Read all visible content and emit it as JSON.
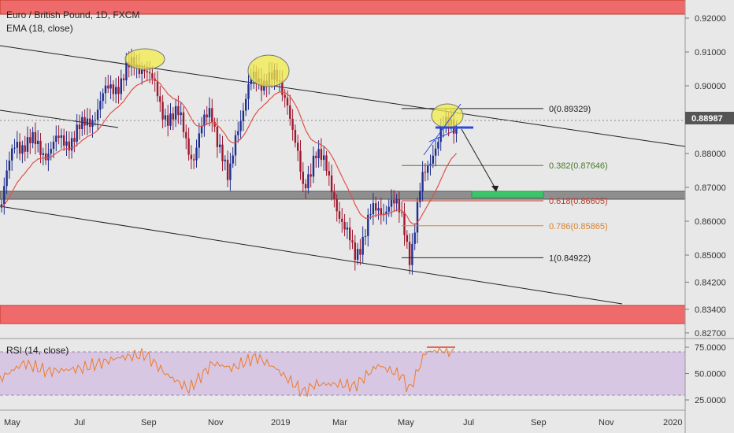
{
  "chart_data": [
    {
      "type": "candlestick",
      "title": "Euro / British Pound, 1D, FXCM",
      "indicator": "EMA (18, close)",
      "y_ticks": [
        "0.92000",
        "0.91000",
        "0.90000",
        "0.89000",
        "0.88000",
        "0.87000",
        "0.86000",
        "0.85000",
        "0.84200",
        "0.83400",
        "0.82700"
      ],
      "x_ticks": [
        "May",
        "Jul",
        "Sep",
        "Nov",
        "2019",
        "Mar",
        "May",
        "Jul",
        "Sep",
        "Nov",
        "2020"
      ],
      "last_price": "0.88987",
      "fib_levels": [
        {
          "label": "0(0.89329)",
          "value": 0.89329,
          "color": "#222222"
        },
        {
          "label": "0.382(0.87646)",
          "value": 0.87646,
          "color": "#4a7a2a"
        },
        {
          "label": "0.618(0.86605)",
          "value": 0.86605,
          "color": "#c0392b"
        },
        {
          "label": "0.786(0.85865)",
          "value": 0.85865,
          "color": "#d9822b"
        },
        {
          "label": "1(0.84922)",
          "value": 0.84922,
          "color": "#222222"
        }
      ],
      "colors": {
        "background": "#e8e8e8",
        "resistance_zone": "#ef6b6b",
        "support_zone": "#8e8e8e",
        "target_box": "#3cc46a",
        "up_candle": "#1f2f8f",
        "down_candle": "#a0182f",
        "ema": "#e0524a",
        "highlight": "#f2ee4a"
      }
    },
    {
      "type": "line",
      "title": "RSI (14, close)",
      "y_ticks": [
        "75.0000",
        "50.0000",
        "25.0000"
      ],
      "color": "#f07a2a",
      "band_color": "#d7c7e3"
    }
  ]
}
